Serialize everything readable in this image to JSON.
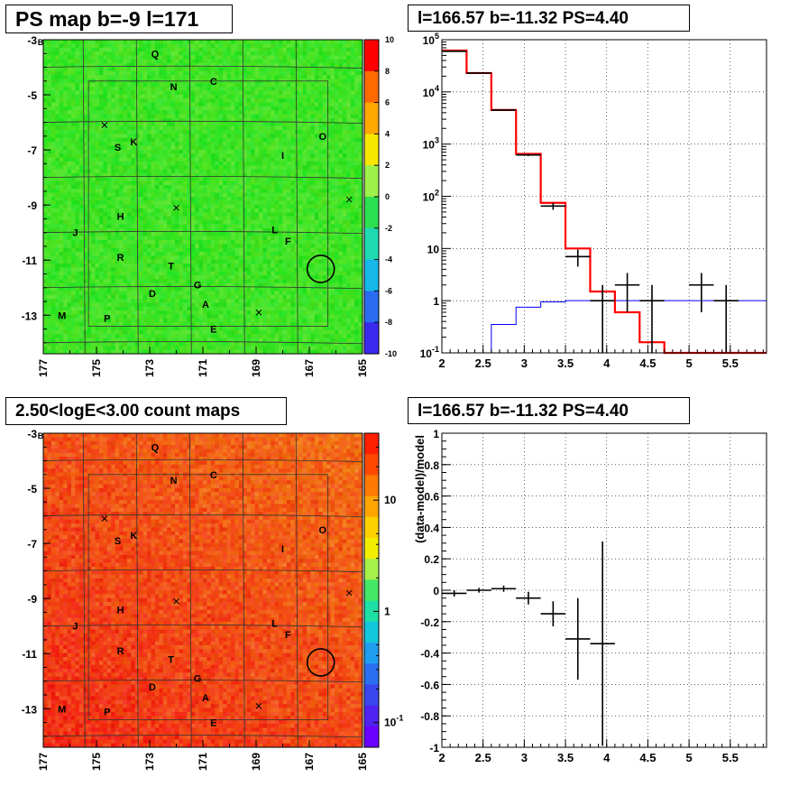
{
  "titles": {
    "tl": "PS map b=-9 l=171",
    "tr": "l=166.57 b=-11.32 PS=4.40",
    "bl": "2.50<logE<3.00 count maps",
    "br": "l=166.57 b=-11.32 PS=4.40"
  },
  "colors": {
    "green_map": "#3ee34a",
    "red_map": "#f0542a",
    "model_red": "#ff0000",
    "background_blue": "#0000ff",
    "data_black": "#000000"
  },
  "chart_data": [
    {
      "type": "heatmap",
      "title": "PS map b=-9 l=171",
      "xlim": [
        177,
        165
      ],
      "ylim": [
        -14.4,
        -3
      ],
      "x_ticks": [
        "177",
        "175",
        "173",
        "171",
        "169",
        "167",
        "165"
      ],
      "y_ticks": [
        "-3",
        "-5",
        "-7",
        "-9",
        "-11",
        "-13"
      ],
      "y_top_label": "-3",
      "colorbar": {
        "scale": "linear",
        "range": [
          -10,
          10
        ],
        "ticks": [
          "10",
          "8",
          "6",
          "4",
          "2",
          "0",
          "-2",
          "-4",
          "-6",
          "-8",
          "-10"
        ]
      },
      "sources": [
        {
          "label": "Q",
          "l": 172.8,
          "b": -3.5
        },
        {
          "label": "C",
          "l": 170.6,
          "b": -4.5
        },
        {
          "label": "N",
          "l": 172.1,
          "b": -4.7
        },
        {
          "label": "O",
          "l": 166.5,
          "b": -6.5
        },
        {
          "label": "S",
          "l": 174.2,
          "b": -6.9
        },
        {
          "label": "K",
          "l": 173.6,
          "b": -6.7
        },
        {
          "label": "I",
          "l": 168.0,
          "b": -7.2
        },
        {
          "label": "H",
          "l": 174.1,
          "b": -9.4
        },
        {
          "label": "J",
          "l": 175.8,
          "b": -10.0
        },
        {
          "label": "L",
          "l": 168.3,
          "b": -9.9
        },
        {
          "label": "F",
          "l": 167.8,
          "b": -10.3
        },
        {
          "label": "R",
          "l": 174.1,
          "b": -10.9
        },
        {
          "label": "T",
          "l": 172.2,
          "b": -11.2
        },
        {
          "label": "G",
          "l": 171.2,
          "b": -11.9
        },
        {
          "label": "D",
          "l": 172.9,
          "b": -12.2
        },
        {
          "label": "A",
          "l": 170.9,
          "b": -12.6
        },
        {
          "label": "M",
          "l": 176.3,
          "b": -13.0
        },
        {
          "label": "P",
          "l": 174.6,
          "b": -13.1
        },
        {
          "label": "E",
          "l": 170.6,
          "b": -13.5
        }
      ],
      "crosses": [
        {
          "l": 174.7,
          "b": -6.1
        },
        {
          "l": 172.0,
          "b": -9.1
        },
        {
          "l": 168.9,
          "b": -12.9
        },
        {
          "l": 165.5,
          "b": -8.8
        }
      ],
      "circle": {
        "l": 166.57,
        "b": -11.32
      }
    },
    {
      "type": "line",
      "title": "l=166.57 b=-11.32 PS=4.40",
      "yscale": "log",
      "xlim": [
        2,
        5.94
      ],
      "ylim": [
        0.1,
        100000
      ],
      "x_ticks": [
        "2",
        "2.5",
        "3",
        "3.5",
        "4",
        "4.5",
        "5",
        "5.5"
      ],
      "y_ticks": [
        "10^{-1}",
        "1",
        "10",
        "10^{2}",
        "10^{3}",
        "10^{4}",
        "10^{5}"
      ],
      "model_steps": {
        "edges": [
          2.0,
          2.3,
          2.6,
          2.9,
          3.2,
          3.5,
          3.8,
          4.1,
          4.4,
          4.7,
          5.94
        ],
        "values": [
          62000,
          23000,
          4500,
          650,
          75,
          10,
          1.5,
          0.6,
          0.16,
          0.1
        ]
      },
      "background_steps": {
        "edges": [
          2.6,
          2.9,
          3.2,
          3.5,
          3.8,
          4.1,
          4.4,
          4.7,
          5.94
        ],
        "values": [
          0.35,
          0.75,
          0.95,
          1.0,
          1.0,
          1.0,
          1.0,
          1.0
        ]
      },
      "data_points": [
        {
          "x": 2.15,
          "y": 60000,
          "ylo": 59000,
          "yhi": 61000
        },
        {
          "x": 2.45,
          "y": 23000,
          "ylo": 22700,
          "yhi": 23300
        },
        {
          "x": 2.75,
          "y": 4500,
          "ylo": 4400,
          "yhi": 4600
        },
        {
          "x": 3.05,
          "y": 620,
          "ylo": 590,
          "yhi": 650
        },
        {
          "x": 3.35,
          "y": 65,
          "ylo": 55,
          "yhi": 75
        },
        {
          "x": 3.65,
          "y": 7,
          "ylo": 4.5,
          "yhi": 9.5
        },
        {
          "x": 3.95,
          "y": 1,
          "ylo": 0.1,
          "yhi": 2
        },
        {
          "x": 4.25,
          "y": 2,
          "ylo": 0.6,
          "yhi": 3.4
        },
        {
          "x": 4.55,
          "y": 1,
          "ylo": 0.1,
          "yhi": 2
        },
        {
          "x": 5.15,
          "y": 2,
          "ylo": 0.6,
          "yhi": 3.4
        },
        {
          "x": 5.45,
          "y": 1,
          "ylo": 0.1,
          "yhi": 2
        }
      ]
    },
    {
      "type": "heatmap",
      "title": "2.50<logE<3.00 count maps",
      "xlim": [
        177,
        165
      ],
      "ylim": [
        -14.4,
        -3
      ],
      "x_ticks": [
        "177",
        "175",
        "173",
        "171",
        "169",
        "167",
        "165"
      ],
      "y_ticks": [
        "-3",
        "-5",
        "-7",
        "-9",
        "-11",
        "-13"
      ],
      "y_top_label": "-3",
      "colorbar": {
        "scale": "log",
        "ticks": [
          {
            "value": 10,
            "label": "10"
          },
          {
            "value": 1,
            "label": "1"
          },
          {
            "value": 0.1,
            "label": "10^{-1}"
          }
        ]
      },
      "same_overlay_as": "PS map"
    },
    {
      "type": "scatter",
      "title": "l=166.57 b=-11.32 PS=4.40",
      "ylabel": "(data-model)/model",
      "xlim": [
        2,
        5.94
      ],
      "ylim": [
        -1,
        1
      ],
      "x_ticks": [
        "2",
        "2.5",
        "3",
        "3.5",
        "4",
        "4.5",
        "5",
        "5.5"
      ],
      "y_ticks": [
        "1",
        "0.8",
        "0.6",
        "0.4",
        "0.2",
        "0",
        "-0.2",
        "-0.4",
        "-0.6",
        "-0.8",
        "-1"
      ],
      "points": [
        {
          "x": 2.15,
          "y": -0.02,
          "yerr": 0.02
        },
        {
          "x": 2.45,
          "y": 0.0,
          "yerr": 0.015
        },
        {
          "x": 2.75,
          "y": 0.01,
          "yerr": 0.02
        },
        {
          "x": 3.05,
          "y": -0.05,
          "yerr": 0.04
        },
        {
          "x": 3.35,
          "y": -0.15,
          "yerr": 0.08
        },
        {
          "x": 3.65,
          "y": -0.31,
          "yerr": 0.26
        },
        {
          "x": 3.95,
          "y": -0.34,
          "yerr": 0.65
        }
      ]
    }
  ]
}
